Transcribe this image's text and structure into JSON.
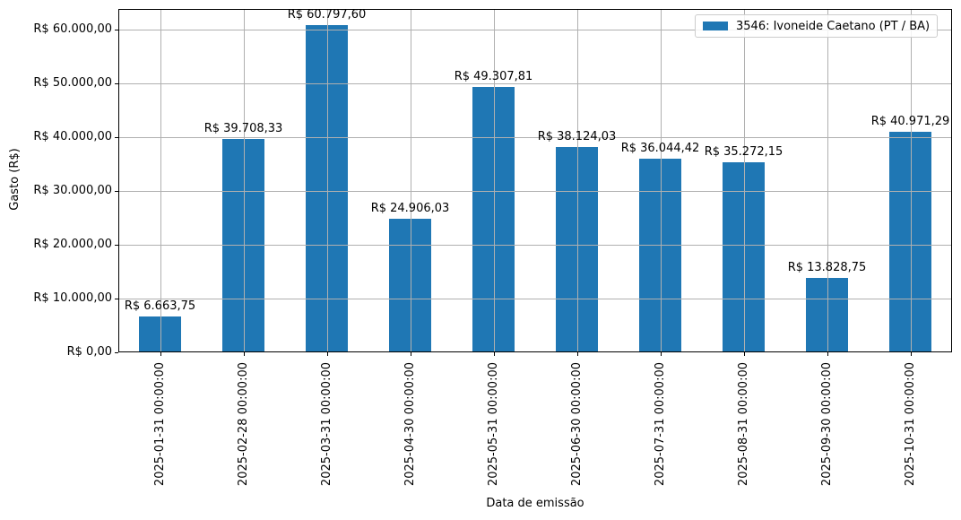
{
  "chart_data": {
    "type": "bar",
    "title": "",
    "xlabel": "Data de emissão",
    "ylabel": "Gasto (R$)",
    "categories": [
      "2025-01-31 00:00:00",
      "2025-02-28 00:00:00",
      "2025-03-31 00:00:00",
      "2025-04-30 00:00:00",
      "2025-05-31 00:00:00",
      "2025-06-30 00:00:00",
      "2025-07-31 00:00:00",
      "2025-08-31 00:00:00",
      "2025-09-30 00:00:00",
      "2025-10-31 00:00:00"
    ],
    "series": [
      {
        "name": "3546: Ivoneide Caetano (PT / BA)",
        "values": [
          6663.75,
          39708.33,
          60797.6,
          24906.03,
          49307.81,
          38124.03,
          36044.42,
          35272.15,
          13828.75,
          40971.29
        ]
      }
    ],
    "bar_labels": [
      "R$ 6.663,75",
      "R$ 39.708,33",
      "R$ 60.797,60",
      "R$ 24.906,03",
      "R$ 49.307,81",
      "R$ 38.124,03",
      "R$ 36.044,42",
      "R$ 35.272,15",
      "R$ 13.828,75",
      "R$ 40.971,29"
    ],
    "yticks": [
      {
        "value": 0,
        "label": "R$ 0,00"
      },
      {
        "value": 10000,
        "label": "R$ 10.000,00"
      },
      {
        "value": 20000,
        "label": "R$ 20.000,00"
      },
      {
        "value": 30000,
        "label": "R$ 30.000,00"
      },
      {
        "value": 40000,
        "label": "R$ 40.000,00"
      },
      {
        "value": 50000,
        "label": "R$ 50.000,00"
      },
      {
        "value": 60000,
        "label": "R$ 60.000,00"
      }
    ],
    "ylim": [
      0,
      63837.48
    ],
    "grid": true,
    "grid_on_top_of_bars": true,
    "legend_position": "upper right",
    "colors": {
      "bar": "#1f77b4",
      "grid": "#b0b0b0",
      "spine": "#000000",
      "text": "#000000",
      "legend_border": "#cccccc",
      "background": "#ffffff"
    }
  }
}
